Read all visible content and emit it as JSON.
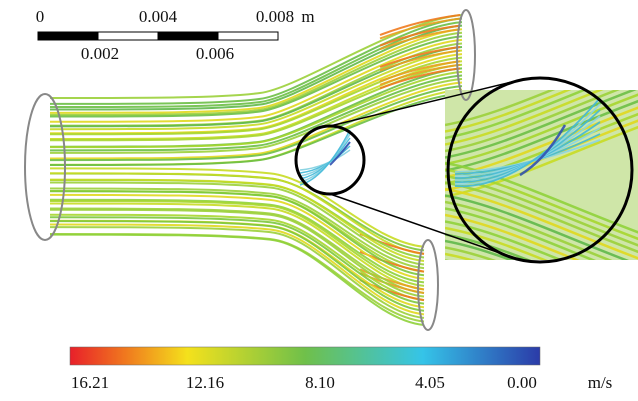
{
  "scale_bar": {
    "labels_top": [
      "0",
      "0.004",
      "0.008"
    ],
    "labels_bottom": [
      "0.002",
      "0.006"
    ],
    "unit": "m"
  },
  "color_bar": {
    "labels": [
      "16.21",
      "12.16",
      "8.10",
      "4.05",
      "0.00"
    ],
    "unit": "m/s"
  }
}
